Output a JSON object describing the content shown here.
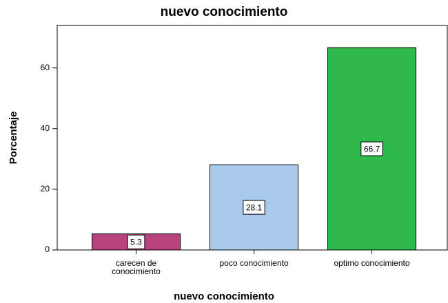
{
  "chart_data": {
    "type": "bar",
    "title": "nuevo conocimiento",
    "x_label": "nuevo conocimiento",
    "y_label": "Porcentaje",
    "categories": [
      "carecen de\nconocimiento",
      "poco conocimiento",
      "optimo conocimiento"
    ],
    "values": [
      5.3,
      28.1,
      66.7
    ],
    "colors": [
      "#b8437c",
      "#a8cbec",
      "#2fb84c"
    ],
    "ylim": [
      0,
      74
    ],
    "yticks": [
      0,
      20,
      40,
      60
    ],
    "grid": false
  }
}
